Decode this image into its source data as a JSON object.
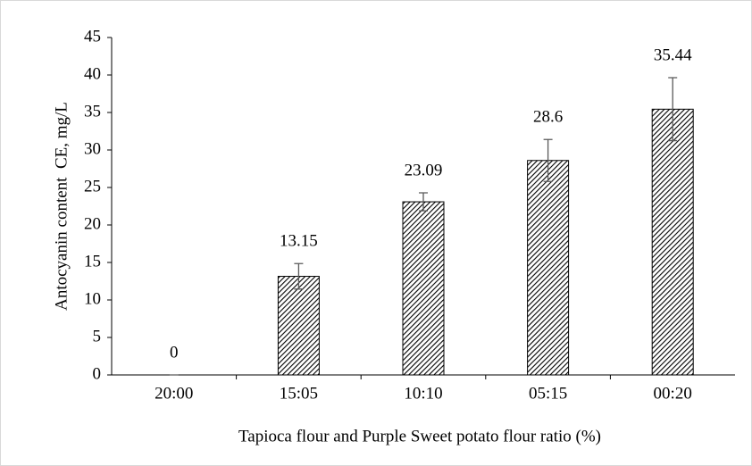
{
  "chart_data": {
    "type": "bar",
    "categories": [
      "20:00",
      "15:05",
      "10:10",
      "05:15",
      "00:20"
    ],
    "values": [
      0,
      13.15,
      23.09,
      28.6,
      35.44
    ],
    "errors": [
      0,
      1.7,
      1.2,
      2.8,
      4.2
    ],
    "ylim": [
      0,
      45
    ],
    "yticks": [
      0,
      5,
      10,
      15,
      20,
      25,
      30,
      35,
      40,
      45
    ],
    "xlabel": "Tapioca flour and Purple Sweet potato flour ratio (%)",
    "ylabel": "Antocyanin content  CE, mg/L",
    "color": "#000000"
  }
}
